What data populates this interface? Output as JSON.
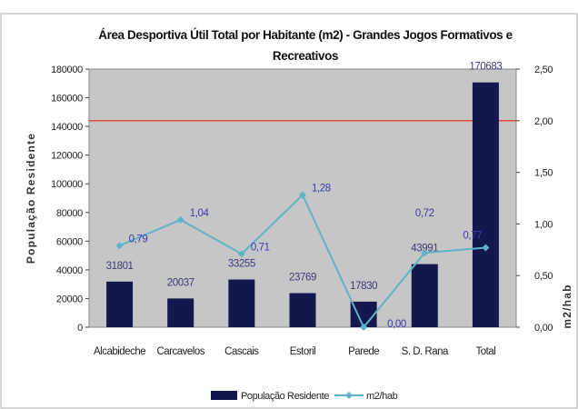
{
  "chart_data": {
    "type": "bar",
    "title": "Área Desportiva Útil Total por Habitante (m2) - Grandes Jogos Formativos e",
    "title_line2": "Recreativos",
    "categories": [
      "Alcabideche",
      "Carcavelos",
      "Cascais",
      "Estoril",
      "Parede",
      "S. D. Rana",
      "Total"
    ],
    "series": [
      {
        "name": "População Residente",
        "type": "bar",
        "axis": "left",
        "color": "#14184e",
        "values": [
          31801,
          20037,
          33255,
          23769,
          17830,
          43991,
          170683
        ],
        "labels": [
          "31801",
          "20037",
          "33255",
          "23769",
          "17830",
          "43991",
          "170683"
        ]
      },
      {
        "name": "m2/hab",
        "type": "line",
        "axis": "right",
        "color": "#5fb3c8",
        "values": [
          0.79,
          1.04,
          0.71,
          1.28,
          0.0,
          0.72,
          0.77
        ],
        "labels": [
          "0,79",
          "1,04",
          "0,71",
          "1,28",
          "0,00",
          "0,72",
          "0,77"
        ]
      }
    ],
    "reference_line": {
      "axis": "right",
      "value": 2.0,
      "color": "#e0402a"
    },
    "ylabel": "População Residente",
    "y2label": "m2/hab",
    "ylim": [
      0,
      180000
    ],
    "y2lim": [
      0,
      2.5
    ],
    "yticks": [
      "0",
      "20000",
      "40000",
      "60000",
      "80000",
      "100000",
      "120000",
      "140000",
      "160000",
      "180000"
    ],
    "y2ticks": [
      "0,00",
      "0,50",
      "1,00",
      "1,50",
      "2,00",
      "2,50"
    ],
    "legend_position": "bottom",
    "plot_background": "#c6c6c6",
    "grid": false
  }
}
